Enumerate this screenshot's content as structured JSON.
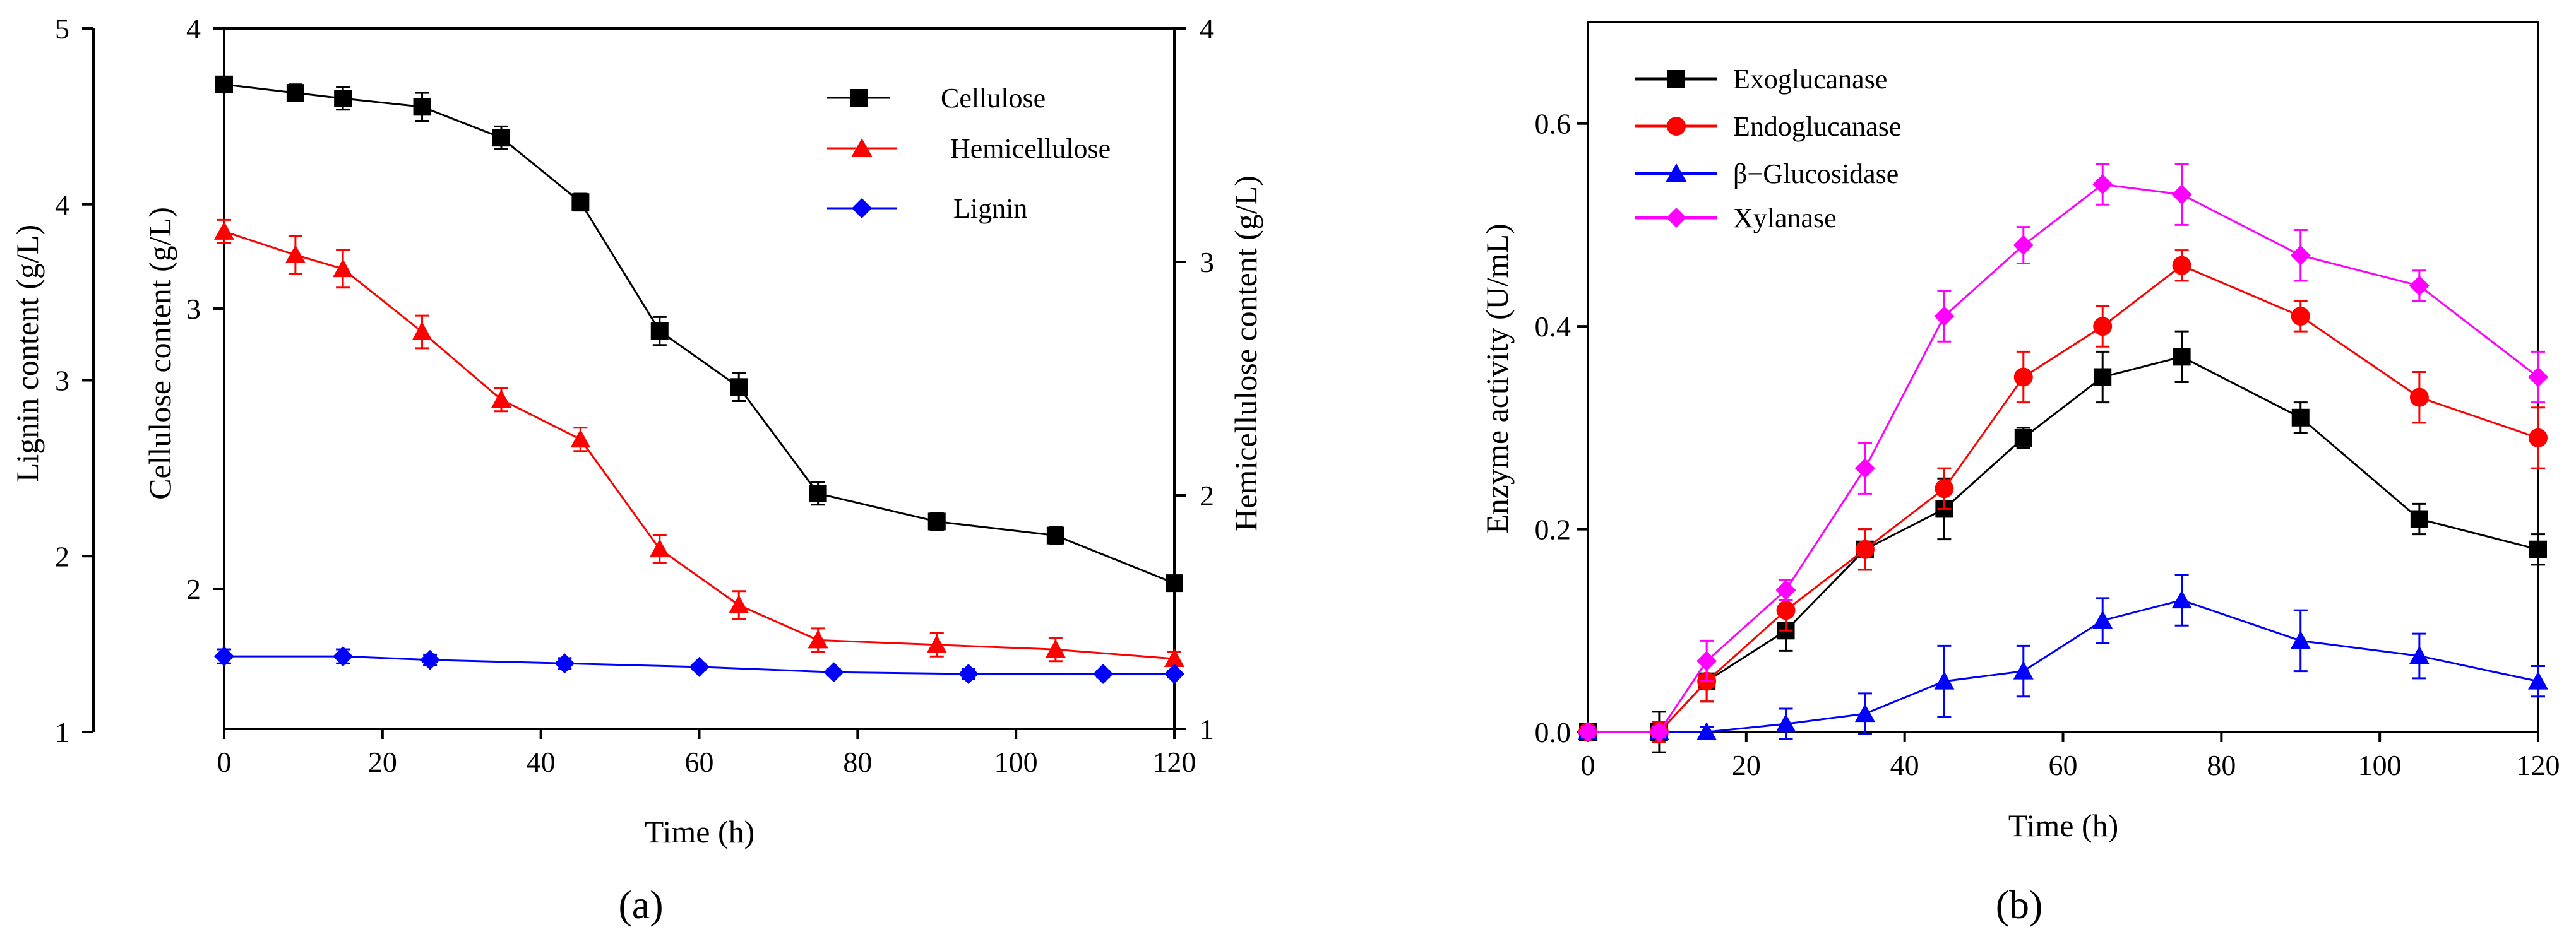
{
  "chart_data": [
    {
      "panel": "(a)",
      "panel_letter": "a",
      "type": "line",
      "xlabel": "Time (h)",
      "xlim": [
        0,
        120
      ],
      "xticks": [
        0,
        20,
        40,
        60,
        80,
        100,
        120
      ],
      "axes": {
        "cellulose": {
          "label": "Cellulose content (g/L)",
          "ylim": [
            1.5,
            4
          ],
          "ticks": [
            2,
            3,
            4
          ]
        },
        "lignin": {
          "label": "Lignin content (g/L)",
          "ylim": [
            1,
            5
          ],
          "ticks": [
            1,
            2,
            3,
            4,
            5
          ]
        },
        "hemicellulose": {
          "label": "Hemicellulose content (g/L)",
          "ylim": [
            1,
            4
          ],
          "ticks": [
            1,
            2,
            3,
            4
          ]
        }
      },
      "series": [
        {
          "name": "Cellulose",
          "axis": "cellulose",
          "color": "#000000",
          "marker": "square",
          "x": [
            0,
            9,
            15,
            25,
            35,
            45,
            55,
            65,
            75,
            90,
            105,
            120
          ],
          "y": [
            3.8,
            3.77,
            3.75,
            3.72,
            3.61,
            3.38,
            2.92,
            2.72,
            2.34,
            2.24,
            2.19,
            2.02
          ],
          "err": [
            0.025,
            0.03,
            0.04,
            0.05,
            0.04,
            0.03,
            0.05,
            0.05,
            0.04,
            0.03,
            0.03,
            0.02
          ]
        },
        {
          "name": "Hemicellulose",
          "axis": "hemicellulose",
          "color": "#ff0000",
          "marker": "triangle",
          "x": [
            0,
            9,
            15,
            25,
            35,
            45,
            55,
            65,
            75,
            90,
            105,
            120
          ],
          "y": [
            3.13,
            3.03,
            2.97,
            2.7,
            2.41,
            2.24,
            1.77,
            1.53,
            1.38,
            1.36,
            1.34,
            1.3
          ],
          "err": [
            0.05,
            0.08,
            0.08,
            0.07,
            0.05,
            0.05,
            0.06,
            0.06,
            0.05,
            0.05,
            0.05,
            0.03
          ]
        },
        {
          "name": "Lignin",
          "axis": "lignin",
          "color": "#0000ff",
          "marker": "diamond",
          "x": [
            0,
            15,
            26,
            43,
            60,
            77,
            94,
            111,
            120
          ],
          "y": [
            1.43,
            1.43,
            1.41,
            1.39,
            1.37,
            1.34,
            1.33,
            1.33,
            1.33
          ],
          "err": [
            0.04,
            0.04,
            0.03,
            0.03,
            0.02,
            0.02,
            0.03,
            0.02,
            0.02
          ]
        }
      ]
    },
    {
      "panel": "(b)",
      "panel_letter": "b",
      "type": "line",
      "xlabel": "Time (h)",
      "ylabel": "Enzyme activity (U/mL)",
      "xlim": [
        0,
        120
      ],
      "ylim": [
        0,
        0.7
      ],
      "xticks": [
        0,
        20,
        40,
        60,
        80,
        100,
        120
      ],
      "yticks": [
        "0.0",
        "0.2",
        "0.4",
        "0.6"
      ],
      "series": [
        {
          "name": "Exoglucanase",
          "color": "#000000",
          "marker": "square",
          "x": [
            0,
            9,
            15,
            25,
            35,
            45,
            55,
            65,
            75,
            90,
            105,
            120
          ],
          "y": [
            0,
            0,
            0.05,
            0.1,
            0.18,
            0.22,
            0.29,
            0.35,
            0.37,
            0.31,
            0.21,
            0.18
          ],
          "err": [
            0.005,
            0.02,
            0.02,
            0.02,
            0.02,
            0.03,
            0.01,
            0.025,
            0.025,
            0.015,
            0.015,
            0.015
          ]
        },
        {
          "name": "Endoglucanase",
          "color": "#ff0000",
          "marker": "circle",
          "x": [
            0,
            9,
            15,
            25,
            35,
            45,
            55,
            65,
            75,
            90,
            105,
            120
          ],
          "y": [
            0,
            0,
            0.05,
            0.12,
            0.18,
            0.24,
            0.35,
            0.4,
            0.46,
            0.41,
            0.33,
            0.29
          ],
          "err": [
            0.005,
            0.01,
            0.02,
            0.02,
            0.02,
            0.02,
            0.025,
            0.02,
            0.015,
            0.015,
            0.025,
            0.03
          ]
        },
        {
          "name": "β−Glucosidase",
          "color": "#0000ff",
          "marker": "triangle",
          "x": [
            0,
            9,
            15,
            25,
            35,
            45,
            55,
            65,
            75,
            90,
            105,
            120
          ],
          "y": [
            0,
            0,
            0,
            0.008,
            0.018,
            0.05,
            0.06,
            0.11,
            0.13,
            0.09,
            0.075,
            0.05
          ],
          "err": [
            0.003,
            0.003,
            0.005,
            0.015,
            0.02,
            0.035,
            0.025,
            0.022,
            0.025,
            0.03,
            0.022,
            0.015
          ]
        },
        {
          "name": "Xylanase",
          "color": "#ff00ff",
          "marker": "diamond",
          "x": [
            0,
            9,
            15,
            25,
            35,
            45,
            55,
            65,
            75,
            90,
            105,
            120
          ],
          "y": [
            0,
            0,
            0.07,
            0.14,
            0.26,
            0.41,
            0.48,
            0.54,
            0.53,
            0.47,
            0.44,
            0.35
          ],
          "err": [
            0.005,
            0.005,
            0.02,
            0.01,
            0.025,
            0.025,
            0.018,
            0.02,
            0.03,
            0.025,
            0.015,
            0.025
          ]
        }
      ]
    }
  ]
}
